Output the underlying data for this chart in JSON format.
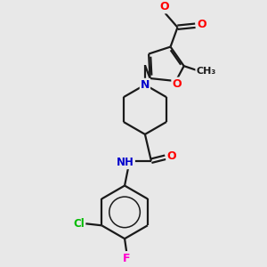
{
  "bg_color": "#e8e8e8",
  "bond_color": "#1a1a1a",
  "atom_colors": {
    "O": "#ff0000",
    "N": "#0000cc",
    "Cl": "#00bb00",
    "F": "#ff00cc",
    "H": "#666666",
    "C": "#1a1a1a"
  },
  "figsize": [
    3.0,
    3.0
  ],
  "dpi": 100
}
